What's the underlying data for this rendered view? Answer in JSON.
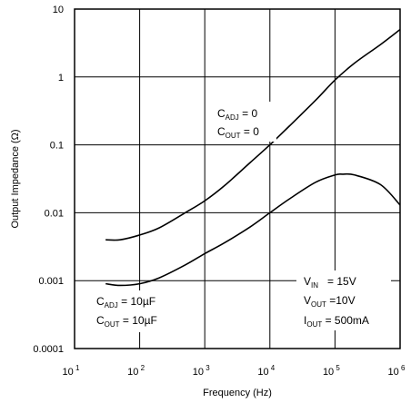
{
  "chart_data": {
    "type": "line",
    "xlabel": "Frequency (Hz)",
    "ylabel": "Output Impedance (Ω)",
    "x_scale": "log",
    "y_scale": "log",
    "xlim": [
      10,
      1000000
    ],
    "ylim": [
      0.0001,
      10
    ],
    "grid": true,
    "x_ticks": [
      {
        "base": "10",
        "exp": "1"
      },
      {
        "base": "10",
        "exp": "2"
      },
      {
        "base": "10",
        "exp": "3"
      },
      {
        "base": "10",
        "exp": "4"
      },
      {
        "base": "10",
        "exp": "5"
      },
      {
        "base": "10",
        "exp": "6"
      }
    ],
    "y_ticks": [
      "10",
      "1",
      "0.1",
      "0.01",
      "0.001",
      "0.0001"
    ],
    "series": [
      {
        "x": [
          30,
          50,
          100,
          200,
          500,
          1000,
          2000,
          5000,
          10000,
          20000,
          50000,
          100000,
          200000,
          500000,
          1000000
        ],
        "y": [
          0.004,
          0.004,
          0.0047,
          0.006,
          0.01,
          0.015,
          0.025,
          0.055,
          0.1,
          0.19,
          0.45,
          0.9,
          1.6,
          3.0,
          5.0
        ]
      },
      {
        "x": [
          30,
          50,
          100,
          200,
          500,
          1000,
          2000,
          5000,
          10000,
          20000,
          50000,
          100000,
          130000,
          200000,
          500000,
          1000000
        ],
        "y": [
          0.0009,
          0.00085,
          0.0009,
          0.0011,
          0.0017,
          0.0025,
          0.0036,
          0.0062,
          0.01,
          0.016,
          0.028,
          0.036,
          0.037,
          0.036,
          0.026,
          0.013
        ]
      }
    ],
    "annotations": {
      "upper": {
        "line1": {
          "main": "C",
          "sub": "ADJ",
          "rest": " = 0"
        },
        "line2": {
          "main": "C",
          "sub": "OUT",
          "rest": " = 0"
        }
      },
      "lower": {
        "line1": {
          "main": "C",
          "sub": "ADJ",
          "rest": " = 10µF"
        },
        "line2": {
          "main": "C",
          "sub": "OUT",
          "rest": " = 10µF"
        }
      },
      "conditions": {
        "line1": {
          "main": "V",
          "sub": "IN",
          "rest": "   = 15V"
        },
        "line2": {
          "main": "V",
          "sub": "OUT",
          "rest": " =10V"
        },
        "line3": {
          "main": "I",
          "sub": "OUT",
          "rest": " = 500mA"
        }
      }
    }
  }
}
